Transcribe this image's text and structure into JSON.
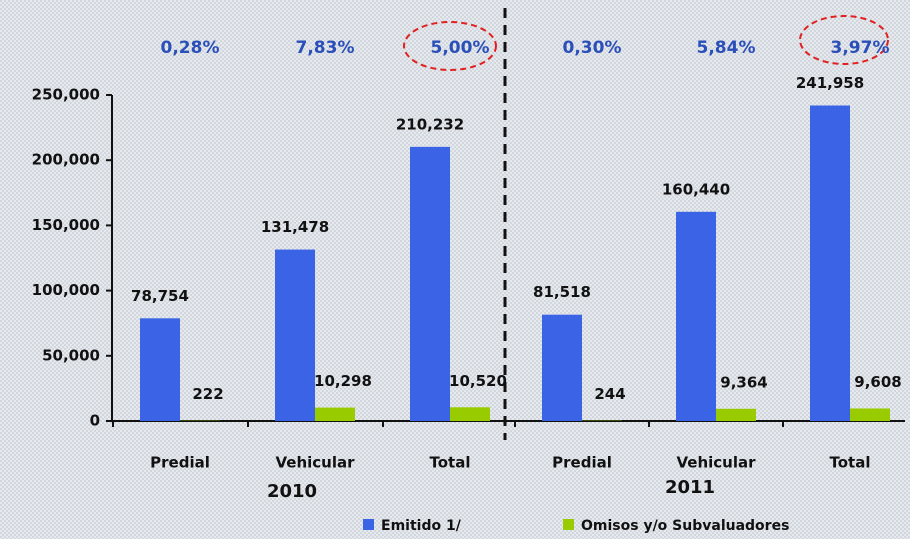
{
  "chart_data": {
    "type": "bar",
    "categories": [
      "Predial",
      "Vehicular",
      "Total",
      "Predial",
      "Vehicular",
      "Total"
    ],
    "groups": [
      "2010",
      "2011"
    ],
    "annotations": [
      "0,28%",
      "7,83%",
      "5,00%",
      "0,30%",
      "5,84%",
      "3,97%"
    ],
    "series": [
      {
        "name": "Emitido 1/",
        "color": "#3b63e6",
        "values": [
          78754,
          131478,
          210232,
          81518,
          160440,
          241958
        ],
        "value_labels": [
          "78,754",
          "131,478",
          "210,232",
          "81,518",
          "160,440",
          "241,958"
        ]
      },
      {
        "name": "Omisos y/o Subvaluadores",
        "color": "#99cc00",
        "values": [
          222,
          10298,
          10520,
          244,
          9364,
          9608
        ],
        "value_labels": [
          "222",
          "10,298",
          "10,520",
          "244",
          "9,364",
          "9,608"
        ]
      }
    ],
    "ylim": [
      0,
      250000
    ],
    "yticks": [
      0,
      {
        "value": 50000,
        "label": "50,000"
      },
      {
        "value": 100000,
        "label": "100,000"
      },
      {
        "value": 150000,
        "label": "150,000"
      },
      {
        "value": 200000,
        "label": "200,000"
      },
      {
        "value": 250000,
        "label": "250,000"
      }
    ]
  }
}
